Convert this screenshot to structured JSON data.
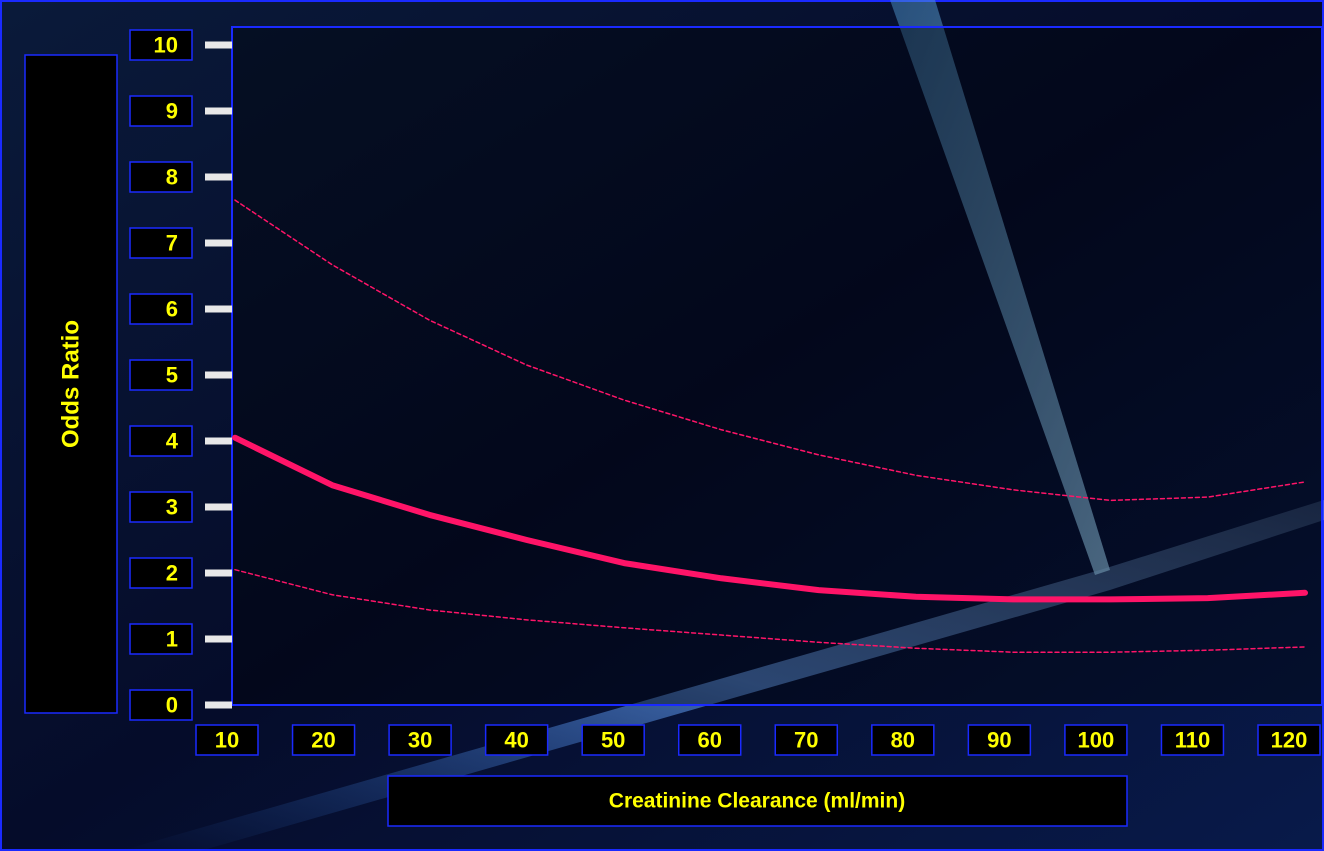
{
  "chart_data": {
    "type": "line",
    "x_label": "Creatinine Clearance (ml/min)",
    "y_label": "Odds Ratio",
    "x": [
      10,
      20,
      30,
      40,
      50,
      60,
      70,
      80,
      90,
      100,
      110,
      120
    ],
    "series": [
      {
        "color": "#ff1468",
        "style": "solid",
        "values": [
          4.05,
          3.33,
          2.88,
          2.5,
          2.15,
          1.92,
          1.74,
          1.64,
          1.6,
          1.6,
          1.62,
          1.7
        ]
      },
      {
        "color": "#ff1468",
        "style": "dashed",
        "values": [
          7.65,
          6.67,
          5.83,
          5.15,
          4.62,
          4.17,
          3.79,
          3.48,
          3.26,
          3.1,
          3.15,
          3.38
        ]
      },
      {
        "color": "#ff1468",
        "style": "dashed",
        "values": [
          2.05,
          1.67,
          1.44,
          1.29,
          1.17,
          1.06,
          0.95,
          0.86,
          0.8,
          0.8,
          0.83,
          0.88
        ]
      }
    ],
    "xlim": [
      10,
      120
    ],
    "xticks": [
      10,
      20,
      30,
      40,
      50,
      60,
      70,
      80,
      90,
      100,
      110,
      120
    ],
    "ylim": [
      0,
      10
    ],
    "yticks": [
      0,
      1,
      2,
      3,
      4,
      5,
      6,
      7,
      8,
      9,
      10
    ]
  }
}
